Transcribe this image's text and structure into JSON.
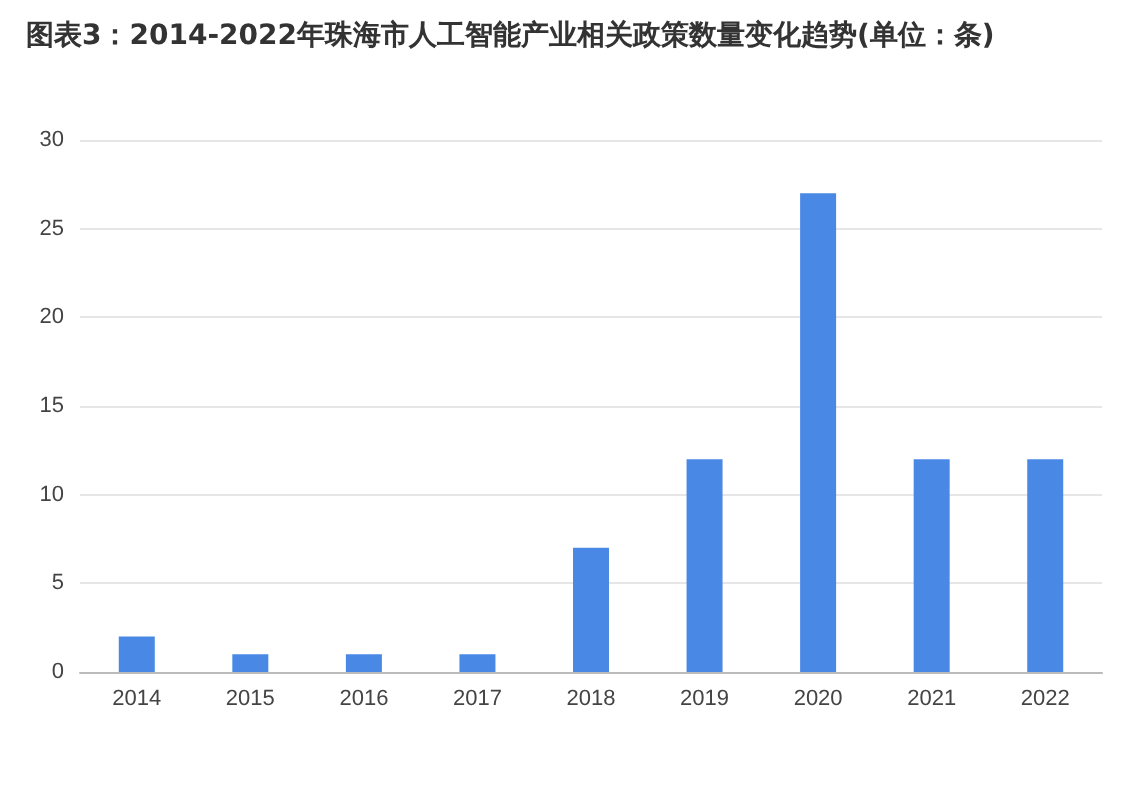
{
  "chart_data": {
    "type": "bar",
    "title": "图表3：2014-2022年珠海市人工智能产业相关政策数量变化趋势(单位：条)",
    "categories": [
      "2014",
      "2015",
      "2016",
      "2017",
      "2018",
      "2019",
      "2020",
      "2021",
      "2022"
    ],
    "values": [
      2,
      1,
      1,
      1,
      7,
      12,
      27,
      12,
      12
    ],
    "color": "#4a88e6",
    "ylim": [
      0,
      30
    ],
    "yticks": [
      0,
      5,
      10,
      15,
      20,
      25,
      30
    ],
    "grid": "y"
  }
}
